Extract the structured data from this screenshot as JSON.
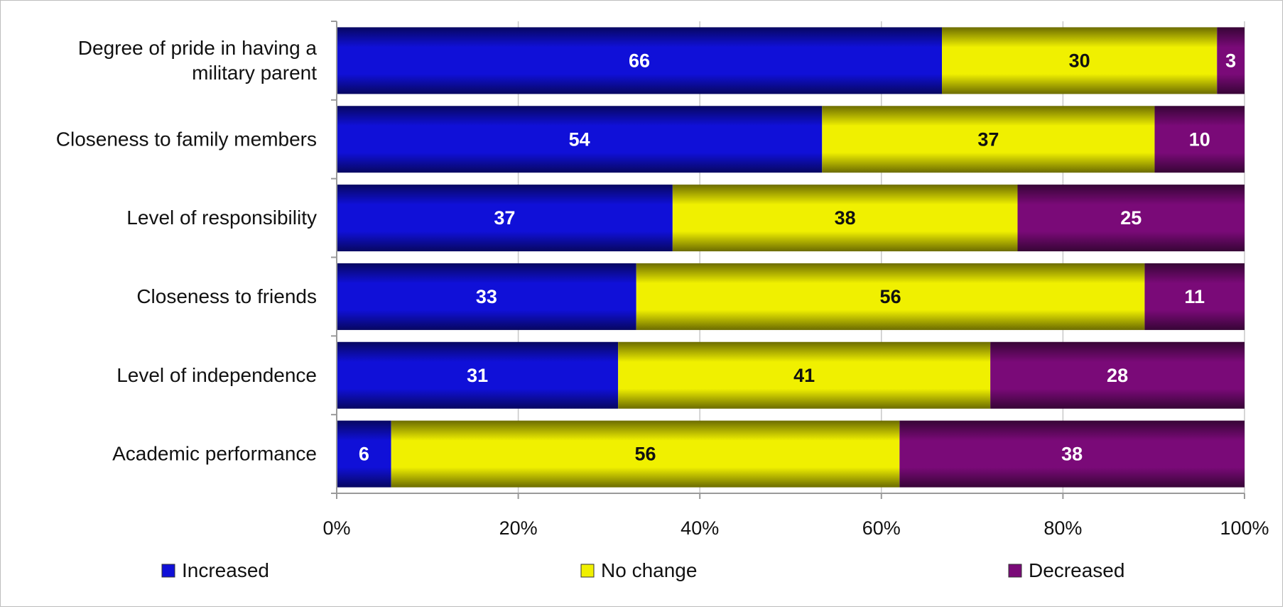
{
  "chart_data": {
    "type": "bar",
    "orientation": "horizontal",
    "stacked": "percent",
    "categories": [
      [
        "Degree of pride in having a",
        "military parent"
      ],
      [
        "Closeness to family members"
      ],
      [
        "Level of responsibility"
      ],
      [
        "Closeness to friends"
      ],
      [
        "Level of independence"
      ],
      [
        "Academic performance"
      ]
    ],
    "series": [
      {
        "name": "Increased",
        "color": "#1010d8",
        "label_color": "#ffffff",
        "values": [
          66,
          54,
          37,
          33,
          31,
          6
        ]
      },
      {
        "name": "No change",
        "color": "#f0f000",
        "label_color": "#111111",
        "values": [
          30,
          37,
          38,
          56,
          41,
          56
        ]
      },
      {
        "name": "Decreased",
        "color": "#7a0a78",
        "label_color": "#ffffff",
        "values": [
          3,
          10,
          25,
          11,
          28,
          38
        ]
      }
    ],
    "xlim": [
      0,
      100
    ],
    "xticks": [
      "0%",
      "20%",
      "40%",
      "60%",
      "80%",
      "100%"
    ],
    "grid": true,
    "legend_position": "bottom",
    "title": "",
    "xlabel": "",
    "ylabel": ""
  }
}
